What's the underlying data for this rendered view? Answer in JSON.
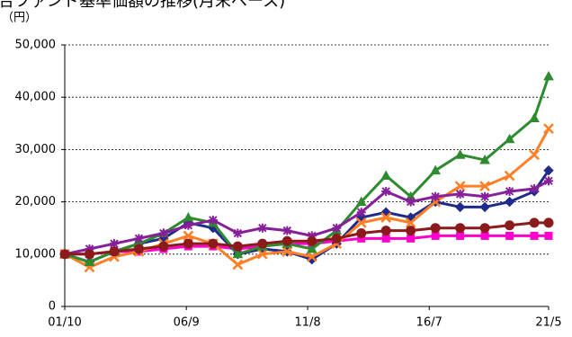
{
  "chart_data": {
    "type": "line",
    "title": "合ファンド基準価額の推移(月末ベース)",
    "y_label": "（円）",
    "x": [
      2001.75,
      2002.75,
      2003.75,
      2004.75,
      2005.75,
      2006.75,
      2007.75,
      2008.75,
      2009.75,
      2010.75,
      2011.75,
      2012.75,
      2013.75,
      2014.75,
      2015.75,
      2016.75,
      2017.75,
      2018.75,
      2019.75,
      2020.75,
      2021.33
    ],
    "xlim": [
      2001.75,
      2021.33
    ],
    "xticks": [
      {
        "value": 2001.75,
        "label": "01/10"
      },
      {
        "value": 2006.67,
        "label": "06/9"
      },
      {
        "value": 2011.58,
        "label": "11/8"
      },
      {
        "value": 2016.5,
        "label": "16/7"
      },
      {
        "value": 2021.33,
        "label": "21/5"
      }
    ],
    "ylim": [
      0,
      50000
    ],
    "yticks": [
      0,
      {
        "value": 10000,
        "label": "10,000"
      },
      {
        "value": 20000,
        "label": "20,000"
      },
      {
        "value": 30000,
        "label": "30,000"
      },
      {
        "value": 40000,
        "label": "40,000"
      },
      {
        "value": 50000,
        "label": "50,000"
      }
    ],
    "grid": true,
    "series": [
      {
        "color": "#ff00cc",
        "marker": "square",
        "values": [
          10000,
          10000,
          10500,
          10500,
          11000,
          11500,
          11500,
          11000,
          11500,
          12000,
          12000,
          12500,
          13000,
          13000,
          13000,
          13500,
          13500,
          13500,
          13500,
          13500,
          13500
        ]
      },
      {
        "color": "#1f2a8a",
        "marker": "diamond",
        "values": [
          10000,
          8500,
          10500,
          12000,
          13000,
          16000,
          15000,
          10000,
          11000,
          10500,
          9000,
          12000,
          17000,
          18000,
          17000,
          20000,
          19000,
          19000,
          20000,
          22000,
          26000
        ]
      },
      {
        "color": "#ff7f27",
        "marker": "cross",
        "values": [
          10000,
          7500,
          9500,
          10500,
          12000,
          13500,
          12000,
          8000,
          10000,
          10500,
          9500,
          12000,
          16000,
          17000,
          16000,
          20000,
          23000,
          23000,
          25000,
          29000,
          34000
        ]
      },
      {
        "color": "#2e8b2e",
        "marker": "triangle",
        "values": [
          10000,
          8500,
          10500,
          12000,
          14000,
          17000,
          16000,
          10000,
          11500,
          12000,
          11000,
          14500,
          20000,
          25000,
          21000,
          26000,
          29000,
          28000,
          32000,
          36000,
          44000
        ]
      },
      {
        "color": "#86209a",
        "marker": "star",
        "values": [
          10000,
          11000,
          12000,
          13000,
          14000,
          15500,
          16500,
          14000,
          15000,
          14500,
          13500,
          15000,
          18000,
          22000,
          20000,
          21000,
          21500,
          21000,
          22000,
          22500,
          24000
        ]
      },
      {
        "color": "#8b1a1a",
        "marker": "circle",
        "values": [
          10000,
          10000,
          10500,
          11000,
          11500,
          12000,
          12000,
          11500,
          12000,
          12500,
          12500,
          13000,
          14000,
          14500,
          14500,
          15000,
          15000,
          15000,
          15500,
          16000,
          16000
        ]
      }
    ]
  }
}
